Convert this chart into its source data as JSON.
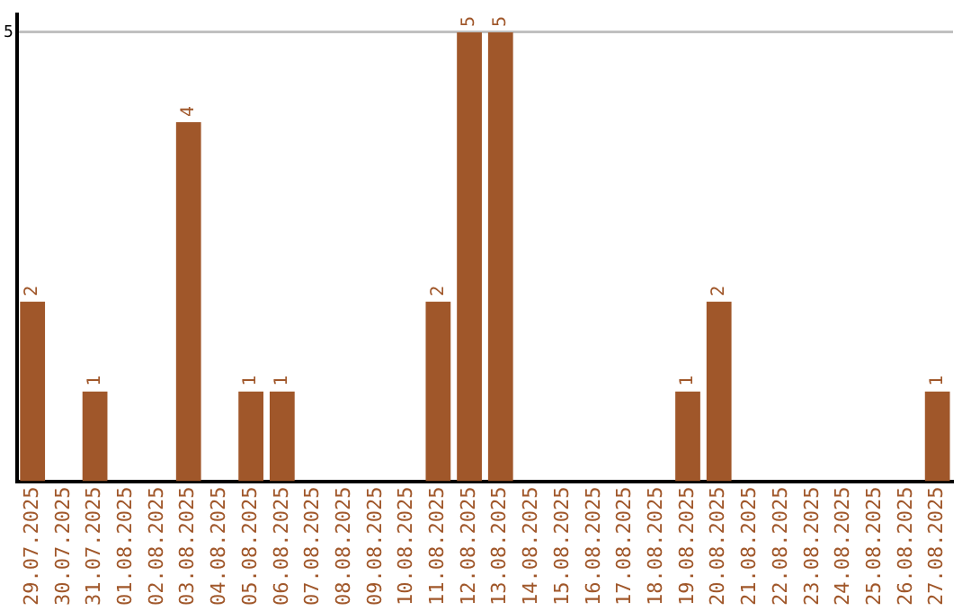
{
  "chart_data": {
    "type": "bar",
    "categories": [
      "29.07.2025",
      "30.07.2025",
      "31.07.2025",
      "01.08.2025",
      "02.08.2025",
      "03.08.2025",
      "04.08.2025",
      "05.08.2025",
      "06.08.2025",
      "07.08.2025",
      "08.08.2025",
      "09.08.2025",
      "10.08.2025",
      "11.08.2025",
      "12.08.2025",
      "13.08.2025",
      "14.08.2025",
      "15.08.2025",
      "16.08.2025",
      "17.08.2025",
      "18.08.2025",
      "19.08.2025",
      "20.08.2025",
      "21.08.2025",
      "22.08.2025",
      "23.08.2025",
      "24.08.2025",
      "25.08.2025",
      "26.08.2025",
      "27.08.2025"
    ],
    "values": [
      2,
      0,
      1,
      0,
      0,
      4,
      0,
      1,
      1,
      0,
      0,
      0,
      0,
      2,
      5,
      5,
      0,
      0,
      0,
      0,
      0,
      1,
      2,
      0,
      0,
      0,
      0,
      0,
      0,
      1
    ],
    "value_labels": [
      "2",
      null,
      "1",
      null,
      null,
      "4",
      null,
      "1",
      "1",
      null,
      null,
      null,
      null,
      "2",
      "5",
      "5",
      null,
      null,
      null,
      null,
      null,
      "1",
      "2",
      null,
      null,
      null,
      null,
      null,
      null,
      "1"
    ],
    "color": "#a0572a",
    "ylim": [
      0,
      5.2
    ],
    "yticks": [
      5
    ],
    "grid": "y",
    "legend": false
  }
}
